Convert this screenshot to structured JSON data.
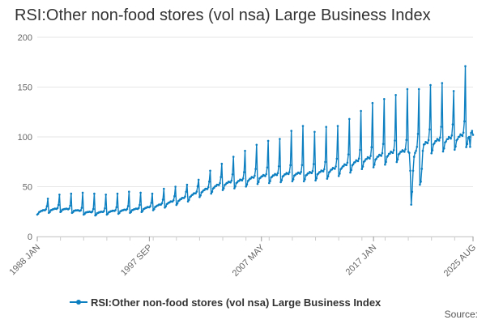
{
  "title": "RSI:Other non-food stores (vol nsa) Large Business Index",
  "source_label": "Source:",
  "colors": {
    "series": "#0c7fc1",
    "grid": "#e6e6e6",
    "axis": "#cccccc"
  },
  "chart_data": {
    "type": "line",
    "title": "RSI:Other non-food stores (vol nsa) Large Business Index",
    "xlabel": "",
    "ylabel": "",
    "ylim": [
      0,
      200
    ],
    "yticks": [
      0,
      50,
      100,
      150,
      200
    ],
    "xlim": [
      "1988 JAN",
      "2025 AUG"
    ],
    "x_tick_labels": [
      "1988 JAN",
      "1997 SEP",
      "2007 MAY",
      "2017 JAN",
      "2025 AUG"
    ],
    "grid": "horizontal",
    "legend_position": "bottom",
    "series": [
      {
        "name": "RSI:Other non-food stores (vol nsa) Large Business Index",
        "color": "#0c7fc1",
        "december_peaks": [
          [
            "1988",
            38
          ],
          [
            "1989",
            42
          ],
          [
            "1990",
            43
          ],
          [
            "1991",
            44
          ],
          [
            "1992",
            43
          ],
          [
            "1993",
            42
          ],
          [
            "1994",
            43
          ],
          [
            "1995",
            45
          ],
          [
            "1996",
            44
          ],
          [
            "1997",
            43
          ],
          [
            "1998",
            48
          ],
          [
            "1999",
            50
          ],
          [
            "2000",
            52
          ],
          [
            "2001",
            57
          ],
          [
            "2002",
            66
          ],
          [
            "2003",
            73
          ],
          [
            "2004",
            80
          ],
          [
            "2005",
            86
          ],
          [
            "2006",
            92
          ],
          [
            "2007",
            96
          ],
          [
            "2008",
            98
          ],
          [
            "2009",
            106
          ],
          [
            "2010",
            111
          ],
          [
            "2011",
            105
          ],
          [
            "2012",
            110
          ],
          [
            "2013",
            111
          ],
          [
            "2014",
            118
          ],
          [
            "2015",
            126
          ],
          [
            "2016",
            134
          ],
          [
            "2017",
            138
          ],
          [
            "2018",
            142
          ],
          [
            "2019",
            148
          ],
          [
            "2020",
            148
          ],
          [
            "2021",
            152
          ],
          [
            "2022",
            154
          ],
          [
            "2023",
            146
          ],
          [
            "2024",
            171
          ]
        ],
        "annual_baseline": [
          [
            "1988",
            25
          ],
          [
            "1989",
            27
          ],
          [
            "1990",
            28
          ],
          [
            "1991",
            27
          ],
          [
            "1992",
            25
          ],
          [
            "1993",
            24
          ],
          [
            "1994",
            25
          ],
          [
            "1995",
            26
          ],
          [
            "1996",
            27
          ],
          [
            "1997",
            28
          ],
          [
            "1998",
            30
          ],
          [
            "1999",
            33
          ],
          [
            "2000",
            36
          ],
          [
            "2001",
            40
          ],
          [
            "2002",
            45
          ],
          [
            "2003",
            49
          ],
          [
            "2004",
            53
          ],
          [
            "2005",
            55
          ],
          [
            "2006",
            57
          ],
          [
            "2007",
            60
          ],
          [
            "2008",
            61
          ],
          [
            "2009",
            62
          ],
          [
            "2010",
            63
          ],
          [
            "2011",
            63
          ],
          [
            "2012",
            64
          ],
          [
            "2013",
            66
          ],
          [
            "2014",
            69
          ],
          [
            "2015",
            73
          ],
          [
            "2016",
            77
          ],
          [
            "2017",
            79
          ],
          [
            "2018",
            82
          ],
          [
            "2019",
            85
          ],
          [
            "2020",
            85
          ],
          [
            "2021",
            91
          ],
          [
            "2022",
            95
          ],
          [
            "2023",
            97
          ],
          [
            "2024",
            99
          ],
          [
            "2025",
            102
          ]
        ],
        "covid_2020": [
          [
            "2020 JAN",
            85
          ],
          [
            "2020 FEB",
            84
          ],
          [
            "2020 MAR",
            66
          ],
          [
            "2020 APR",
            32
          ],
          [
            "2020 MAY",
            45
          ],
          [
            "2020 JUN",
            66
          ],
          [
            "2020 JUL",
            80
          ],
          [
            "2020 AUG",
            84
          ],
          [
            "2020 SEP",
            86
          ],
          [
            "2020 OCT",
            90
          ],
          [
            "2020 NOV",
            103
          ],
          [
            "2020 DEC",
            148
          ],
          [
            "2021 JAN",
            52
          ],
          [
            "2021 FEB",
            55
          ],
          [
            "2021 MAR",
            68
          ],
          [
            "2021 APR",
            86
          ]
        ],
        "final_points": [
          [
            "2025 MAY",
            90
          ],
          [
            "2025 JUN",
            104
          ],
          [
            "2025 JUL",
            106
          ],
          [
            "2025 AUG",
            102
          ]
        ]
      }
    ]
  }
}
